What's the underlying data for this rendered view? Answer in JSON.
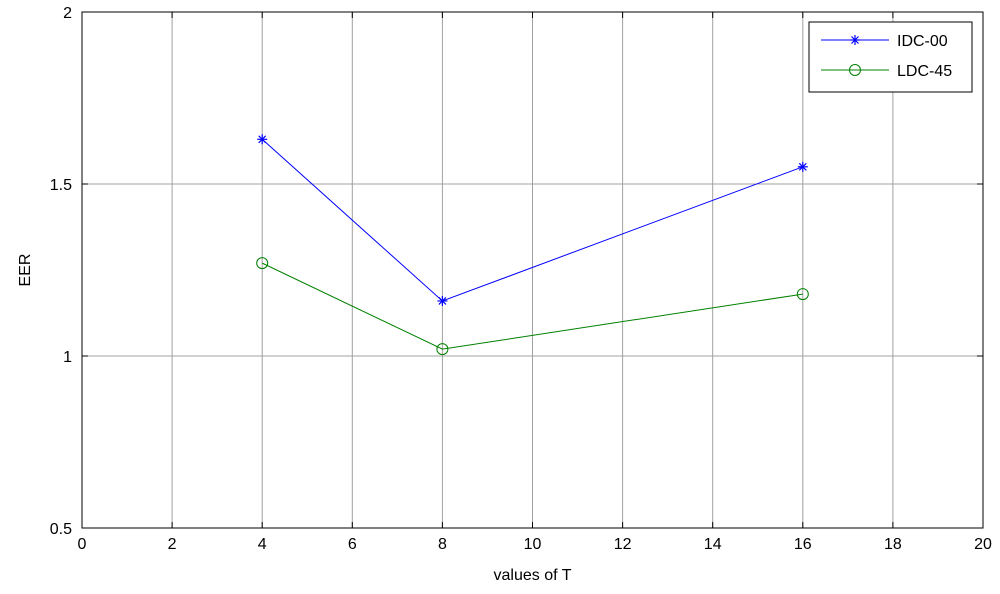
{
  "chart_data": {
    "type": "line",
    "xlabel": "values of T",
    "ylabel": "EER",
    "xlim": [
      0,
      20
    ],
    "ylim": [
      0.5,
      2
    ],
    "xticks": [
      0,
      2,
      4,
      6,
      8,
      10,
      12,
      14,
      16,
      18,
      20
    ],
    "yticks": [
      0.5,
      1,
      1.5,
      2
    ],
    "ytick_labels": [
      "0.5",
      "1",
      "1.5",
      "2"
    ],
    "grid": true,
    "legend_position": "top-right",
    "series": [
      {
        "name": "IDC-00",
        "color": "#0000ff",
        "marker": "asterisk",
        "x": [
          4,
          8,
          16
        ],
        "y": [
          1.63,
          1.16,
          1.55
        ]
      },
      {
        "name": "LDC-45",
        "color": "#008000",
        "marker": "circle",
        "x": [
          4,
          8,
          16
        ],
        "y": [
          1.27,
          1.02,
          1.18
        ]
      }
    ]
  }
}
